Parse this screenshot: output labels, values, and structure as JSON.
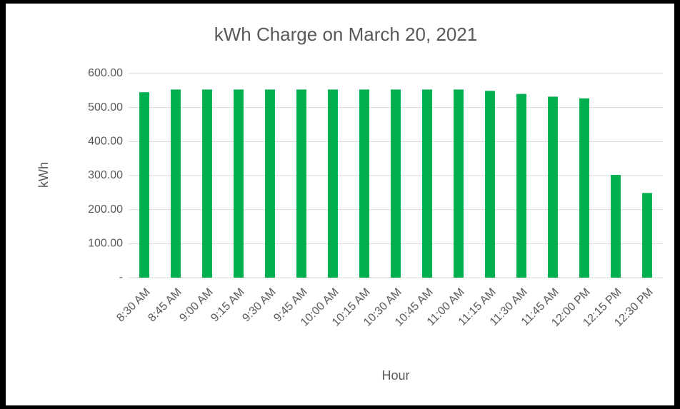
{
  "chart_data": {
    "type": "bar",
    "title": "kWh Charge on March 20, 2021",
    "x_label": "Hour",
    "y_label": "kWh",
    "categories": [
      "8:30 AM",
      "8:45 AM",
      "9:00 AM",
      "9:15 AM",
      "9:30 AM",
      "9:45 AM",
      "10:00 AM",
      "10:15 AM",
      "10:30 AM",
      "10:45 AM",
      "11:00 AM",
      "11:15 AM",
      "11:30 AM",
      "11:45 AM",
      "12:00 PM",
      "12:15 PM",
      "12:30 PM"
    ],
    "values": [
      545,
      553,
      553,
      553,
      553,
      553,
      553,
      553,
      553,
      553,
      553,
      549,
      540,
      532,
      527,
      302,
      249
    ],
    "color": "#00b050",
    "ylim": [
      0,
      600
    ],
    "yticks": [
      {
        "value": 0,
        "label": "-"
      },
      {
        "value": 100,
        "label": "100.00"
      },
      {
        "value": 200,
        "label": "200.00"
      },
      {
        "value": 300,
        "label": "300.00"
      },
      {
        "value": 400,
        "label": "400.00"
      },
      {
        "value": 500,
        "label": "500.00"
      },
      {
        "value": 600,
        "label": "600.00"
      }
    ],
    "grid": true
  }
}
